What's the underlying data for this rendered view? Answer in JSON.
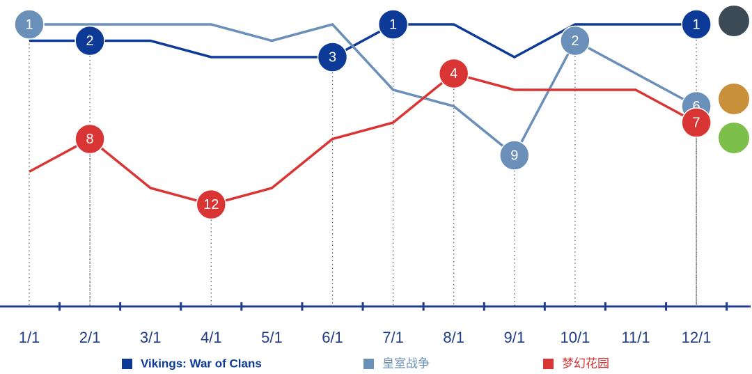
{
  "chart_data": {
    "type": "line",
    "categories": [
      "1/1",
      "2/1",
      "3/1",
      "4/1",
      "5/1",
      "6/1",
      "7/1",
      "8/1",
      "9/1",
      "10/1",
      "11/1",
      "12/1"
    ],
    "ylim": [
      18,
      0
    ],
    "series": [
      {
        "name": "Vikings: War of Clans",
        "color": "#0d3a97",
        "values": [
          2,
          2,
          2,
          3,
          3,
          3,
          1,
          1,
          3,
          1,
          1,
          1
        ],
        "value_labels": [
          null,
          "2",
          null,
          null,
          null,
          "3",
          "1",
          null,
          null,
          null,
          null,
          "1"
        ]
      },
      {
        "name": "皇室战争",
        "color": "#6a8fb8",
        "values": [
          1,
          1,
          1,
          1,
          2,
          1,
          5,
          6,
          9,
          2,
          4,
          6
        ],
        "value_labels": [
          "1",
          null,
          null,
          null,
          null,
          null,
          null,
          null,
          "9",
          "2",
          null,
          "6"
        ]
      },
      {
        "name": "梦幻花园",
        "color": "#d93535",
        "values": [
          10,
          8,
          11,
          12,
          11,
          8,
          7,
          4,
          5,
          5,
          5,
          7
        ],
        "value_labels": [
          null,
          "8",
          null,
          "12",
          null,
          null,
          null,
          "4",
          null,
          null,
          null,
          "7"
        ]
      }
    ]
  }
}
